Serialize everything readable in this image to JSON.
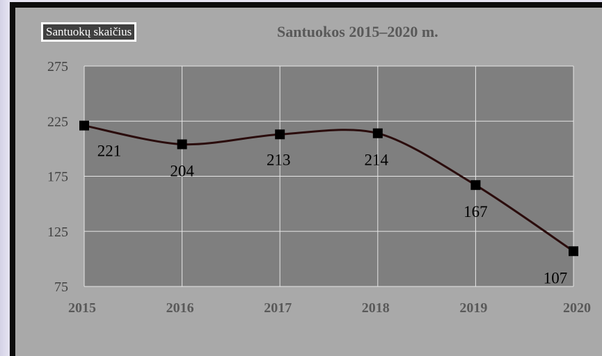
{
  "chart_data": {
    "type": "line",
    "title": "Santuokos  2015–2020 m.",
    "x": [
      "2015",
      "2016",
      "2017",
      "2018",
      "2019",
      "2020"
    ],
    "series": [
      {
        "name": "Santuokų skaičius",
        "values": [
          221,
          204,
          213,
          214,
          167,
          107
        ]
      }
    ],
    "ylim": [
      75,
      275
    ],
    "yticks": [
      "275",
      "225",
      "175",
      "125",
      "75"
    ],
    "xlabel": "",
    "ylabel": "",
    "grid": true,
    "legend_position": "top-left",
    "smooth": true,
    "marker": "square",
    "data_labels": [
      "221",
      "204",
      "213",
      "214",
      "167",
      "107"
    ]
  },
  "colors": {
    "plot_area": "#7f7f7f",
    "chart_area": "#a9a9a9",
    "gridline": "#e6e6e6",
    "line": "#2a0c0c",
    "marker": "#000000",
    "title_text": "#595959",
    "legend_bg": "#404040"
  }
}
